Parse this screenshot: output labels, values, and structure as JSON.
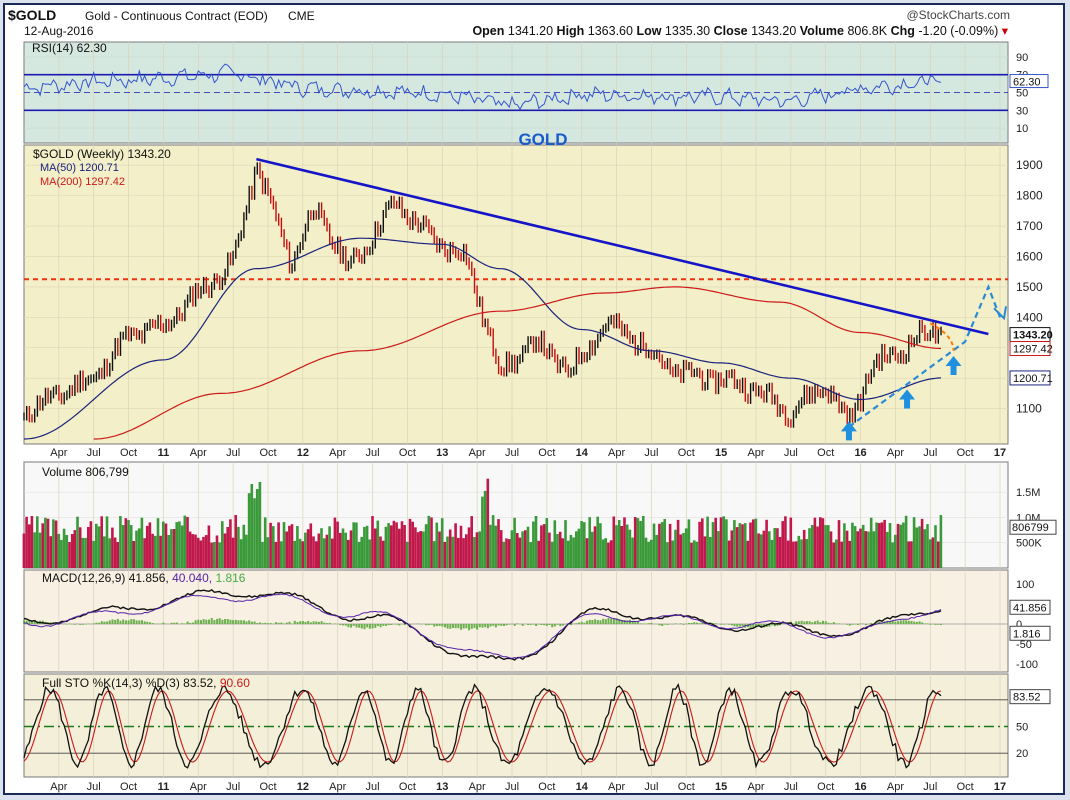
{
  "header": {
    "symbol": "$GOLD",
    "name": "Gold - Continuous Contract (EOD)",
    "exchange": "CME",
    "date": "12-Aug-2016",
    "watermark": "@StockCharts.com",
    "quote": [
      {
        "label": "Open",
        "value": "1341.20"
      },
      {
        "label": "High",
        "value": "1363.60"
      },
      {
        "label": "Low",
        "value": "1335.30"
      },
      {
        "label": "Close",
        "value": "1343.20"
      },
      {
        "label": "Volume",
        "value": "806.8K"
      },
      {
        "label": "Chg",
        "value": "-1.20 (-0.09%)"
      }
    ]
  },
  "annotation": "GOLD",
  "x_axis": {
    "labels": [
      "Apr",
      "Jul",
      "Oct",
      "11",
      "Apr",
      "Jul",
      "Oct",
      "12",
      "Apr",
      "Jul",
      "Oct",
      "13",
      "Apr",
      "Jul",
      "Oct",
      "14",
      "Apr",
      "Jul",
      "Oct",
      "15",
      "Apr",
      "Jul",
      "Oct",
      "16",
      "Apr",
      "Jul",
      "Oct",
      "17"
    ]
  },
  "colors": {
    "price_bg": "#f3efc8",
    "rsi_bg": "#d5e8e0",
    "trendline": "#1515c8",
    "ma50": "#1a237e",
    "ma200": "#cc1a1a",
    "support": "#ee3311",
    "projection": "#2a8ad6",
    "arrow": "#1f8fe0",
    "vol_up": "#3a9a3a",
    "vol_down": "#c0184a"
  },
  "chart_data": [
    {
      "type": "line",
      "panel": "rsi",
      "title": "RSI(14) 62.30",
      "current_label": "62.30",
      "ylim": [
        0,
        100
      ],
      "ticks": [
        90,
        70,
        50,
        30,
        10
      ],
      "reference_levels": [
        70,
        30
      ],
      "x": [
        "2010-01",
        "2010-07",
        "2011-01",
        "2011-07",
        "2012-01",
        "2012-07",
        "2013-01",
        "2013-07",
        "2014-01",
        "2014-07",
        "2015-01",
        "2015-07",
        "2016-01",
        "2016-07"
      ],
      "values": [
        55,
        62,
        66,
        72,
        55,
        52,
        48,
        35,
        48,
        46,
        45,
        40,
        55,
        62.3
      ]
    },
    {
      "type": "line",
      "panel": "price",
      "title": "$GOLD (Weekly) 1343.20",
      "ylim": [
        1000,
        1950
      ],
      "ticks": [
        1900,
        1800,
        1700,
        1600,
        1500,
        1400,
        1300,
        1200,
        1100
      ],
      "right_labels": [
        "1343.20",
        "1297.42",
        "1200.71"
      ],
      "series": [
        {
          "name": "$GOLD (Weekly) 1343.20",
          "x": [
            "2010-01",
            "2010-04",
            "2010-07",
            "2010-10",
            "2011-01",
            "2011-04",
            "2011-07",
            "2011-09",
            "2011-12",
            "2012-02",
            "2012-05",
            "2012-09",
            "2012-12",
            "2013-03",
            "2013-06",
            "2013-09",
            "2013-12",
            "2014-03",
            "2014-06",
            "2014-09",
            "2014-12",
            "2015-03",
            "2015-07",
            "2015-10",
            "2015-12",
            "2016-02",
            "2016-04",
            "2016-07",
            "2016-08"
          ],
          "values": [
            1080,
            1150,
            1200,
            1340,
            1370,
            1480,
            1580,
            1900,
            1580,
            1760,
            1560,
            1780,
            1660,
            1600,
            1220,
            1320,
            1220,
            1380,
            1320,
            1220,
            1200,
            1180,
            1090,
            1180,
            1050,
            1240,
            1280,
            1360,
            1343.2
          ]
        },
        {
          "name": "MA(50) 1200.71",
          "x": [
            "2010-01",
            "2011-01",
            "2011-09",
            "2012-06",
            "2013-01",
            "2013-06",
            "2014-01",
            "2014-07",
            "2015-01",
            "2015-07",
            "2016-01",
            "2016-08"
          ],
          "values": [
            1000,
            1260,
            1560,
            1660,
            1640,
            1560,
            1360,
            1290,
            1250,
            1200,
            1130,
            1200.71
          ]
        },
        {
          "name": "MA(200) 1297.42",
          "x": [
            "2010-07",
            "2011-06",
            "2012-06",
            "2013-06",
            "2014-03",
            "2014-09",
            "2015-06",
            "2016-01",
            "2016-08"
          ],
          "values": [
            1000,
            1150,
            1290,
            1420,
            1480,
            1500,
            1450,
            1350,
            1297.42
          ]
        }
      ],
      "annotations": {
        "trendline": {
          "from": [
            "2011-09",
            1920
          ],
          "to": [
            "2016-12",
            1345
          ]
        },
        "support_level": 1525,
        "projection": [
          [
            "2015-12",
            1040
          ],
          [
            "2016-10",
            1320
          ],
          [
            "2016-12",
            1500
          ],
          [
            "2017-01",
            1400
          ]
        ]
      }
    },
    {
      "type": "bar",
      "panel": "volume",
      "title": "Volume 806,799",
      "current_label": "806799",
      "ticks": [
        "1.5M",
        "1.0M",
        "500K"
      ],
      "values_note": "weekly volume bars, alternating up/down weeks"
    },
    {
      "type": "line",
      "panel": "macd",
      "title": "MACD(12,26,9)",
      "values_labels": [
        "41.856",
        "40.040",
        "1.816"
      ],
      "ticks": [
        100,
        50,
        0,
        -50,
        -100
      ],
      "series": [
        {
          "name": "MACD",
          "x": [
            "2010-01",
            "2011-09",
            "2012-06",
            "2013-06",
            "2014-03",
            "2015-03",
            "2015-12",
            "2016-08"
          ],
          "values": [
            10,
            80,
            20,
            -95,
            30,
            -5,
            -20,
            41.856
          ]
        },
        {
          "name": "Signal",
          "x": [
            "2010-01",
            "2011-09",
            "2012-06",
            "2013-06",
            "2014-03",
            "2015-03",
            "2015-12",
            "2016-08"
          ],
          "values": [
            5,
            70,
            25,
            -85,
            20,
            0,
            -25,
            40.04
          ]
        }
      ]
    },
    {
      "type": "line",
      "panel": "stochastic",
      "title": "Full STO %K(14,3) %D(3)",
      "values_labels": [
        "83.52",
        "90.60"
      ],
      "ticks": [
        80,
        50,
        20
      ],
      "reference_levels": [
        80,
        50,
        20
      ],
      "current_label": "83.52"
    }
  ]
}
